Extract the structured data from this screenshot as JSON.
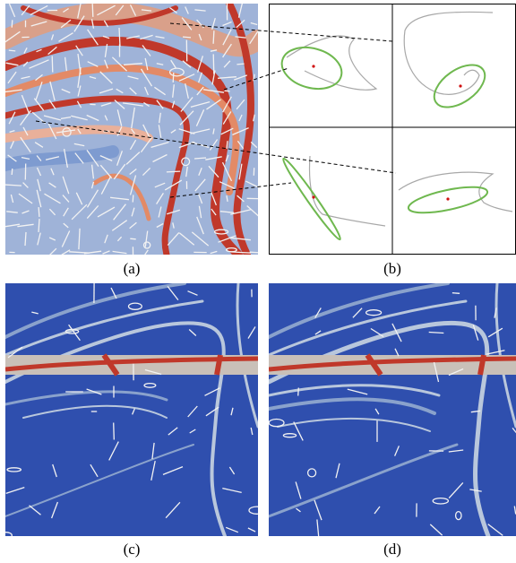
{
  "figure": {
    "captions": {
      "a": "(a)",
      "b": "(b)",
      "c": "(c)",
      "d": "(d)"
    }
  },
  "colors": {
    "field_blue": "#2f4fae",
    "field_light": "#b9c7dc",
    "ridge_red": "#c0382a",
    "ridge_orange": "#e38a66",
    "glyph_white": "#f2f2f2",
    "ellipse_green": "#6fb84f",
    "trajectory_gray": "#a8a8a8",
    "point_red": "#d01010",
    "connector": "#000000",
    "grid_line": "#000000"
  },
  "icons": {
    "glyph": "white-ellipse-glyph",
    "dashed_link": "dashed-connector-line"
  }
}
